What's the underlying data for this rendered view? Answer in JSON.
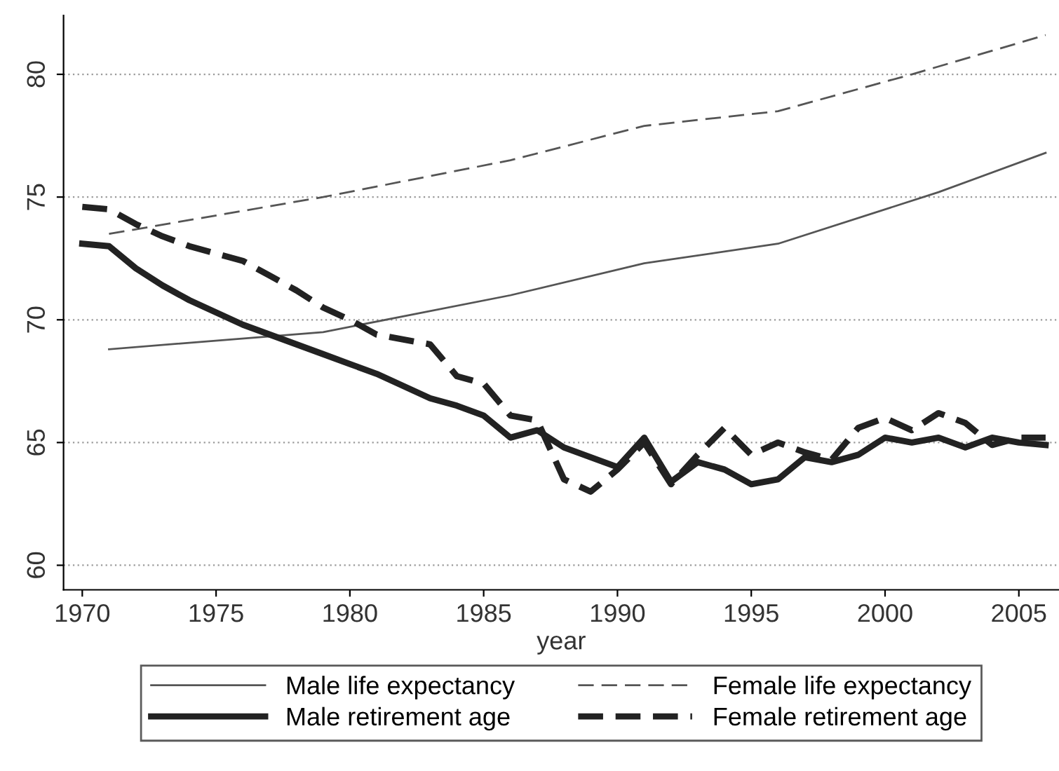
{
  "chart_data": {
    "type": "line",
    "xlabel": "year",
    "xlim": [
      1969.3,
      2006.5
    ],
    "xticks": [
      1970,
      1975,
      1980,
      1985,
      1990,
      1995,
      2000,
      2005
    ],
    "ylim": [
      59,
      82.4
    ],
    "yticks": [
      60,
      65,
      70,
      75,
      80
    ],
    "grid": "y",
    "legend": "bottom",
    "marker": "none",
    "series": [
      {
        "name": "Male life expectancy",
        "color": "#555555",
        "line_style": "solid",
        "x": [
          1971,
          1979,
          1986,
          1991,
          1996,
          2002,
          2006
        ],
        "values": [
          68.8,
          69.5,
          71.0,
          72.3,
          73.1,
          75.2,
          76.8
        ]
      },
      {
        "name": "Female life expectancy",
        "color": "#555555",
        "line_style": "dashed",
        "x": [
          1971,
          1979,
          1986,
          1991,
          1996,
          2001,
          2006
        ],
        "values": [
          73.5,
          75.0,
          76.5,
          77.9,
          78.5,
          80.0,
          81.6
        ]
      },
      {
        "name": "Male retirement age",
        "color": "#222222",
        "line_style": "solid",
        "x": [
          1970,
          1971,
          1972,
          1973,
          1974,
          1975,
          1976,
          1977,
          1978,
          1979,
          1980,
          1981,
          1982,
          1983,
          1984,
          1985,
          1986,
          1987,
          1988,
          1989,
          1990,
          1991,
          1992,
          1993,
          1994,
          1995,
          1996,
          1997,
          1998,
          1999,
          2000,
          2001,
          2002,
          2003,
          2004,
          2005,
          2006
        ],
        "values": [
          73.1,
          73.0,
          72.1,
          71.4,
          70.8,
          70.3,
          69.8,
          69.4,
          69.0,
          68.6,
          68.2,
          67.8,
          67.3,
          66.8,
          66.5,
          66.1,
          65.2,
          65.5,
          64.8,
          64.4,
          64.0,
          65.2,
          63.4,
          64.2,
          63.9,
          63.3,
          63.5,
          64.4,
          64.2,
          64.5,
          65.2,
          65.0,
          65.2,
          64.8,
          65.2,
          65.0,
          64.9
        ]
      },
      {
        "name": "Female retirement age",
        "color": "#222222",
        "line_style": "dashed",
        "x": [
          1970,
          1971,
          1972,
          1973,
          1974,
          1975,
          1976,
          1977,
          1978,
          1979,
          1980,
          1981,
          1982,
          1983,
          1984,
          1985,
          1986,
          1987,
          1988,
          1989,
          1990,
          1991,
          1992,
          1993,
          1994,
          1995,
          1996,
          1997,
          1998,
          1999,
          2000,
          2001,
          2002,
          2003,
          2004,
          2005,
          2006
        ],
        "values": [
          74.6,
          74.5,
          73.9,
          73.4,
          73.0,
          72.7,
          72.4,
          71.8,
          71.2,
          70.5,
          70.0,
          69.4,
          69.2,
          69.0,
          67.7,
          67.4,
          66.1,
          65.9,
          63.5,
          63.0,
          63.9,
          65.0,
          63.3,
          64.5,
          65.6,
          64.5,
          65.0,
          64.6,
          64.3,
          65.6,
          66.0,
          65.5,
          66.2,
          65.8,
          64.9,
          65.2,
          65.2
        ]
      }
    ]
  }
}
